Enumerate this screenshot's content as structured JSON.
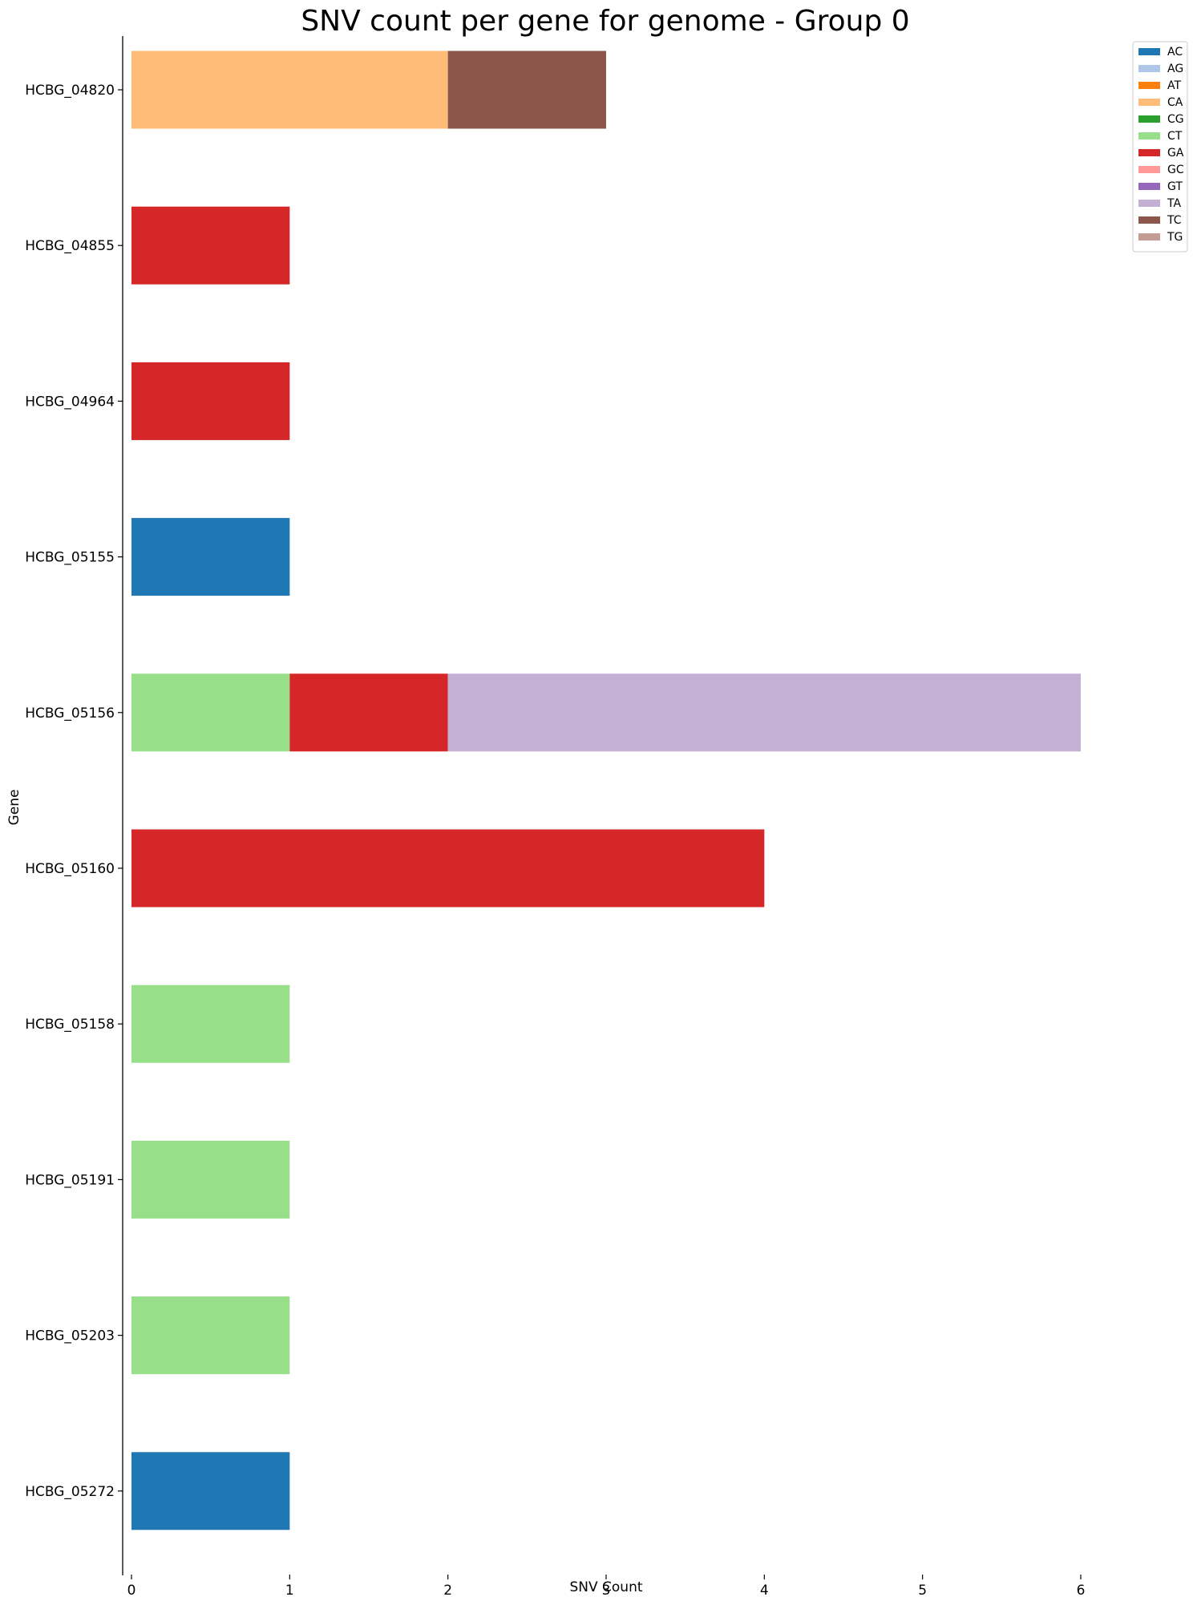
{
  "chart_data": {
    "type": "bar",
    "orientation": "horizontal",
    "stacked": true,
    "title": "SNV count per gene for genome - Group 0",
    "xlabel": "SNV Count",
    "ylabel": "Gene",
    "xlim": [
      0,
      6
    ],
    "xticks": [
      "0",
      "1",
      "2",
      "3",
      "4",
      "5",
      "6"
    ],
    "grid": false,
    "legend_position": "top-right outside",
    "categories": [
      "HCBG_04820",
      "HCBG_04855",
      "HCBG_04964",
      "HCBG_05155",
      "HCBG_05156",
      "HCBG_05160",
      "HCBG_05158",
      "HCBG_05191",
      "HCBG_05203",
      "HCBG_05272"
    ],
    "series": [
      {
        "name": "AC",
        "color": "#1f77b4",
        "values": [
          0,
          0,
          0,
          1,
          0,
          0,
          0,
          0,
          0,
          1
        ]
      },
      {
        "name": "AG",
        "color": "#aec7e8",
        "values": [
          0,
          0,
          0,
          0,
          0,
          0,
          0,
          0,
          0,
          0
        ]
      },
      {
        "name": "AT",
        "color": "#ff7f0e",
        "values": [
          0,
          0,
          0,
          0,
          0,
          0,
          0,
          0,
          0,
          0
        ]
      },
      {
        "name": "CA",
        "color": "#ffbb78",
        "values": [
          2,
          0,
          0,
          0,
          0,
          0,
          0,
          0,
          0,
          0
        ]
      },
      {
        "name": "CG",
        "color": "#2ca02c",
        "values": [
          0,
          0,
          0,
          0,
          0,
          0,
          0,
          0,
          0,
          0
        ]
      },
      {
        "name": "CT",
        "color": "#98df8a",
        "values": [
          0,
          0,
          0,
          0,
          1,
          0,
          1,
          1,
          1,
          0
        ]
      },
      {
        "name": "GA",
        "color": "#d62728",
        "values": [
          0,
          1,
          1,
          0,
          1,
          4,
          0,
          0,
          0,
          0
        ]
      },
      {
        "name": "GC",
        "color": "#ff9896",
        "values": [
          0,
          0,
          0,
          0,
          0,
          0,
          0,
          0,
          0,
          0
        ]
      },
      {
        "name": "GT",
        "color": "#9467bd",
        "values": [
          0,
          0,
          0,
          0,
          0,
          0,
          0,
          0,
          0,
          0
        ]
      },
      {
        "name": "TA",
        "color": "#c5b0d5",
        "values": [
          0,
          0,
          0,
          0,
          4,
          0,
          0,
          0,
          0,
          0
        ]
      },
      {
        "name": "TC",
        "color": "#8c564b",
        "values": [
          1,
          0,
          0,
          0,
          0,
          0,
          0,
          0,
          0,
          0
        ]
      },
      {
        "name": "TG",
        "color": "#c49c94",
        "values": [
          0,
          0,
          0,
          0,
          0,
          0,
          0,
          0,
          0,
          0
        ]
      }
    ]
  }
}
